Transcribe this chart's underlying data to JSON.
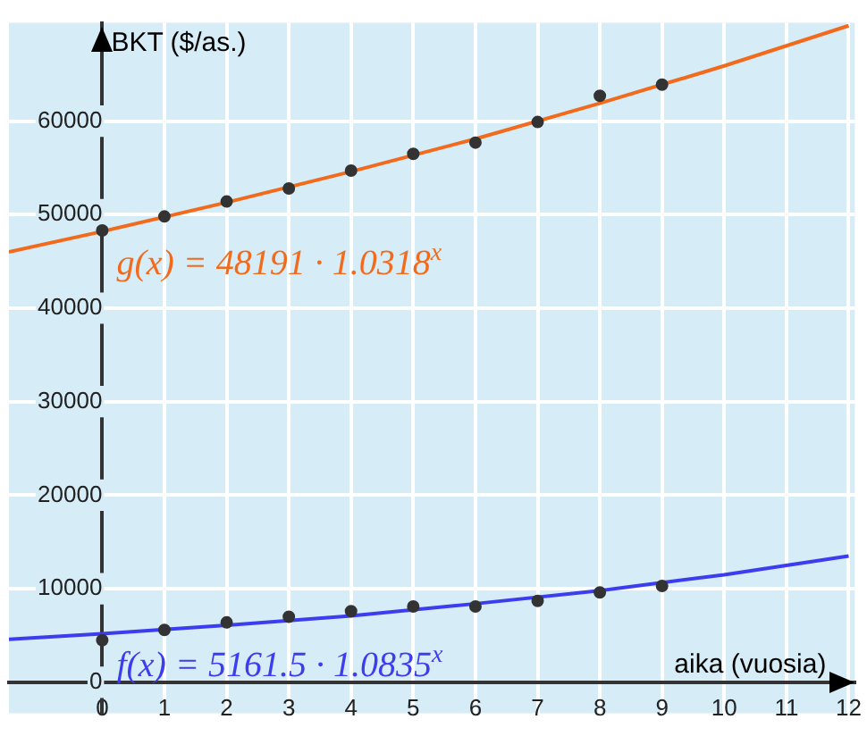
{
  "chart_data": {
    "type": "scatter",
    "xlabel": "aika (vuosia)",
    "ylabel": "BKT ($/as.)",
    "xlim": [
      -1.5,
      12.1
    ],
    "ylim": [
      -3300,
      70500
    ],
    "xticks": [
      0,
      1,
      2,
      3,
      4,
      5,
      6,
      7,
      8,
      9,
      10,
      11,
      12
    ],
    "yticks": [
      0,
      10000,
      20000,
      30000,
      40000,
      50000,
      60000
    ],
    "grid": true,
    "legend": false,
    "marker": "circle",
    "series": [
      {
        "type": "line",
        "marker": "none",
        "name": "g(x) = 48191 · 1.0318$^{x}$",
        "color": "#f26b1d",
        "x": [
          -1.5,
          0,
          2,
          4,
          6,
          8,
          10,
          12
        ],
        "values": [
          46000,
          48200,
          51300,
          54600,
          58100,
          61900,
          65900,
          70200
        ]
      },
      {
        "type": "line",
        "marker": "none",
        "name": "f(x) = 5161.5 · 1.0835$^{x}$",
        "color": "#3d3df0",
        "x": [
          -1.5,
          0,
          2,
          4,
          6,
          8,
          10,
          12
        ],
        "values": [
          4600,
          5200,
          6100,
          7100,
          8400,
          9800,
          11500,
          13500
        ]
      },
      {
        "color": "#333333",
        "x": [
          0,
          1,
          2,
          3,
          4,
          5,
          6,
          7,
          8,
          9
        ],
        "values": [
          48300,
          49800,
          51400,
          52800,
          54700,
          56500,
          57700,
          59900,
          62700,
          63900
        ]
      },
      {
        "color": "#333333",
        "x": [
          0,
          1,
          2,
          3,
          4,
          5,
          6,
          7,
          8,
          9
        ],
        "values": [
          4500,
          5600,
          6400,
          7000,
          7600,
          8100,
          8100,
          8700,
          9600,
          10300
        ]
      }
    ]
  }
}
